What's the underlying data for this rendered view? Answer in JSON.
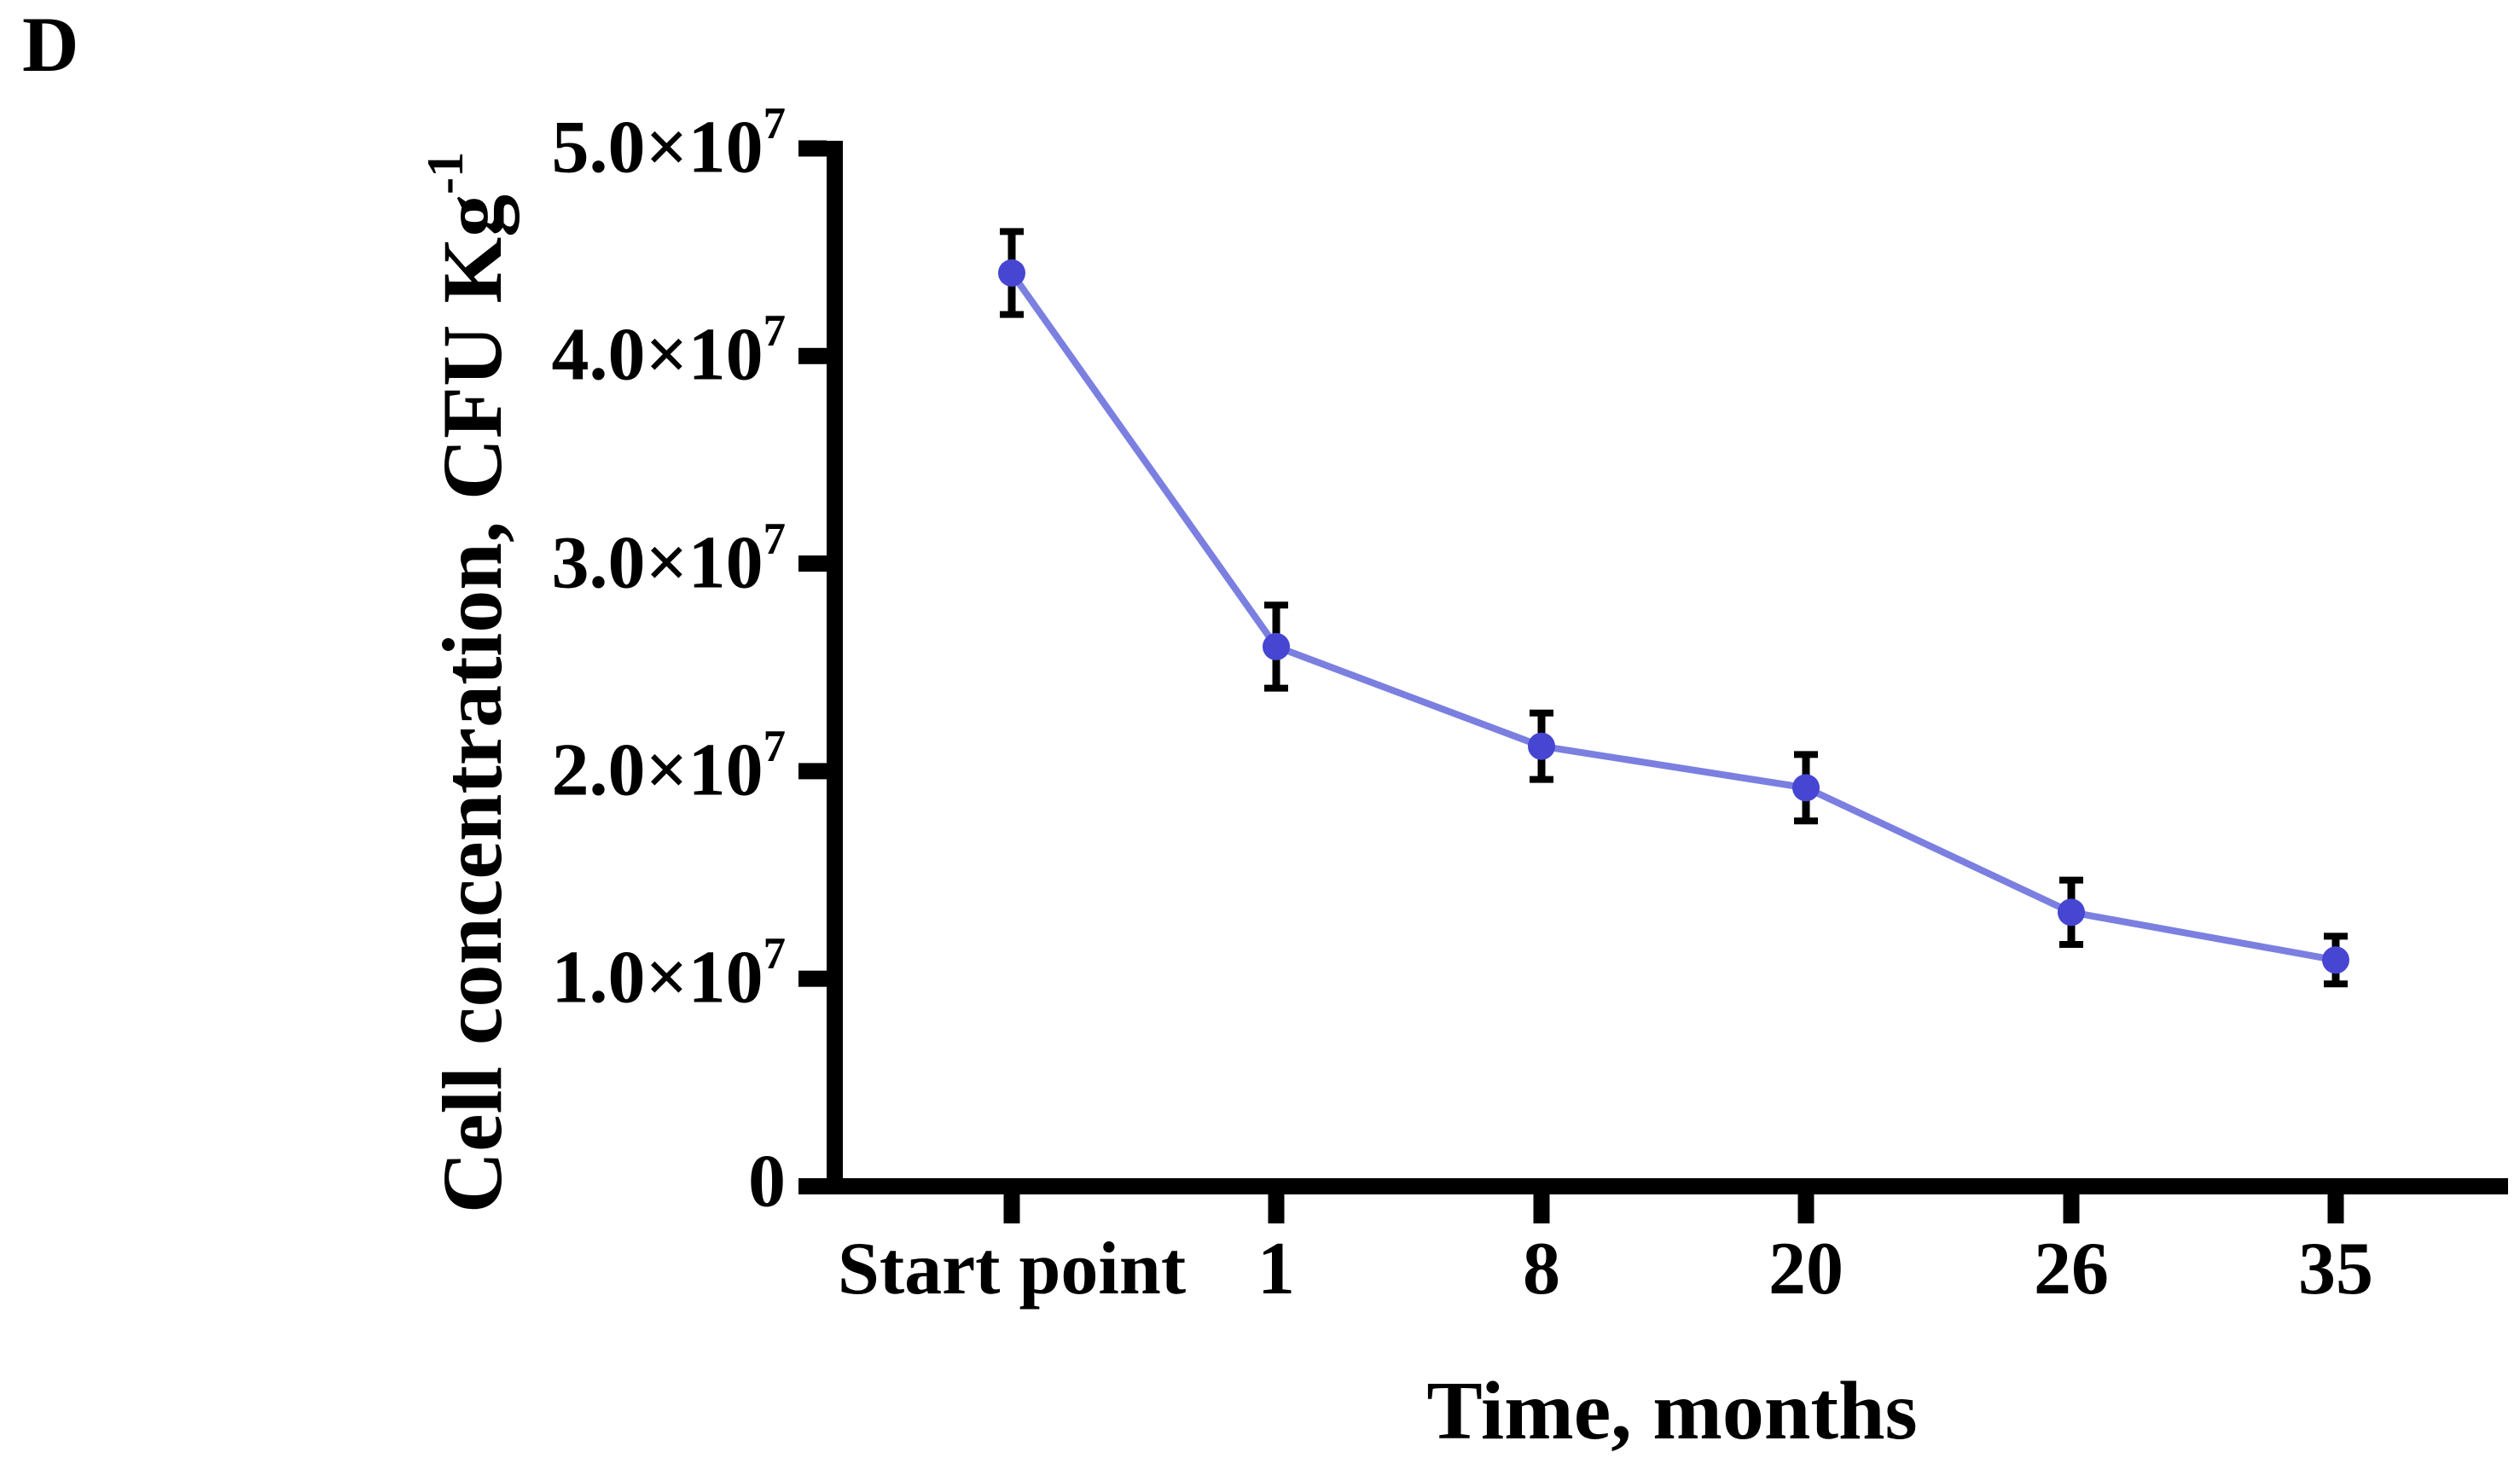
{
  "panel_label": "D",
  "chart_data": {
    "type": "line",
    "title": "",
    "xlabel": "Time, months",
    "ylabel": "Cell concentration, CFU Kg",
    "ylabel_superscript": "-1",
    "categories": [
      "Start point",
      "1",
      "8",
      "20",
      "26",
      "35"
    ],
    "series": [
      {
        "name": "cell-concentration",
        "values": [
          44000000,
          26000000,
          21200000,
          19200000,
          13200000,
          10900000
        ],
        "errors": [
          2000000,
          2000000,
          1600000,
          1600000,
          1550000,
          1150000
        ]
      }
    ],
    "ylim": [
      0,
      50000000
    ],
    "y_ticks": [
      {
        "label": "0",
        "sup": "",
        "value": 0
      },
      {
        "label": "1.0×10",
        "sup": "7",
        "value": 10000000
      },
      {
        "label": "2.0×10",
        "sup": "7",
        "value": 20000000
      },
      {
        "label": "3.0×10",
        "sup": "7",
        "value": 30000000
      },
      {
        "label": "4.0×10",
        "sup": "7",
        "value": 40000000
      },
      {
        "label": "5.0×10",
        "sup": "7",
        "value": 50000000
      }
    ],
    "grid": false,
    "legend": "none",
    "error_bar_style": "caps-both-ends",
    "marker": "circle",
    "colors": {
      "line": "#7b7fe0",
      "marker": "#4646d2",
      "error_bar": "#000000",
      "axis": "#000000",
      "text": "#000000"
    }
  }
}
